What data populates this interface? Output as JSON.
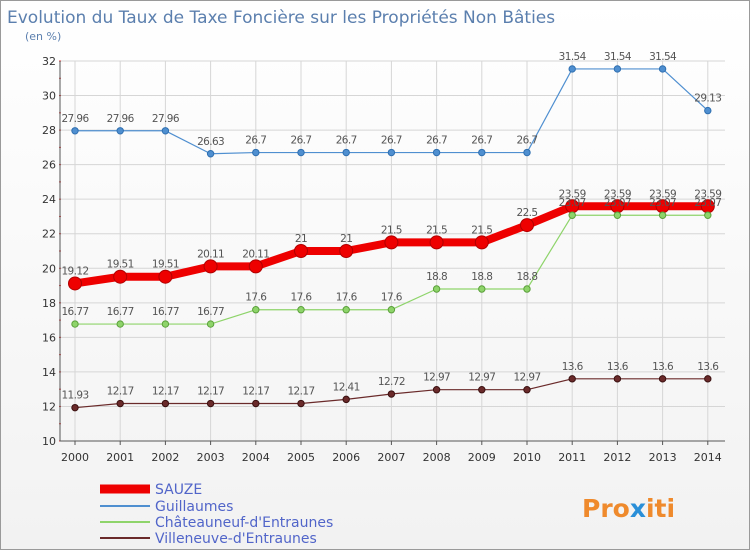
{
  "chart_data": {
    "type": "line",
    "title": "Evolution du Taux de Taxe Foncière sur les Propriétés Non Bâties",
    "subtitle": "(en %)",
    "xlabel": "",
    "ylabel": "(en %)",
    "ylim": [
      10,
      32
    ],
    "yticks": [
      10,
      12,
      14,
      16,
      18,
      20,
      22,
      24,
      26,
      28,
      30,
      32
    ],
    "grid": true,
    "legend_position": "bottom-left",
    "categories": [
      "2000",
      "2001",
      "2002",
      "2003",
      "2004",
      "2005",
      "2006",
      "2007",
      "2008",
      "2009",
      "2010",
      "2011",
      "2012",
      "2013",
      "2014"
    ],
    "series": [
      {
        "name": "SAUZE",
        "color": "#ee0000",
        "values": [
          19.12,
          19.51,
          19.51,
          20.11,
          20.11,
          21,
          21,
          21.5,
          21.5,
          21.5,
          22.5,
          23.59,
          23.59,
          23.59,
          23.59
        ],
        "labels": [
          "19.12",
          "19.51",
          "19.51",
          "20.11",
          "20.11",
          "21",
          "21",
          "21.5",
          "21.5",
          "21.5",
          "22.5",
          "23.59",
          "23.59",
          "23.59",
          "23.59"
        ]
      },
      {
        "name": "Guillaumes",
        "color": "#4f8fd0",
        "values": [
          27.96,
          27.96,
          27.96,
          26.63,
          26.7,
          26.7,
          26.7,
          26.7,
          26.7,
          26.7,
          26.7,
          31.54,
          31.54,
          31.54,
          29.13
        ],
        "labels": [
          "27.96",
          "27.96",
          "27.96",
          "26.63",
          "26.7",
          "26.7",
          "26.7",
          "26.7",
          "26.7",
          "26.7",
          "26.7",
          "31.54",
          "31.54",
          "31.54",
          "29.13"
        ]
      },
      {
        "name": "Châteauneuf-d'Entraunes",
        "color": "#8ed46a",
        "values": [
          16.77,
          16.77,
          16.77,
          16.77,
          17.6,
          17.6,
          17.6,
          17.6,
          18.8,
          18.8,
          18.8,
          23.07,
          23.07,
          23.07,
          23.07
        ],
        "labels": [
          "16.77",
          "16.77",
          "16.77",
          "16.77",
          "17.6",
          "17.6",
          "17.6",
          "17.6",
          "18.8",
          "18.8",
          "18.8",
          "23.07",
          "23.07",
          "23.07",
          "23.07"
        ]
      },
      {
        "name": "Villeneuve-d'Entraunes",
        "color": "#6a2a2a",
        "values": [
          11.93,
          12.17,
          12.17,
          12.17,
          12.17,
          12.17,
          12.41,
          12.72,
          12.97,
          12.97,
          12.97,
          13.6,
          13.6,
          13.6,
          13.6
        ],
        "labels": [
          "11.93",
          "12.17",
          "12.17",
          "12.17",
          "12.17",
          "12.17",
          "12.41",
          "12.72",
          "12.97",
          "12.97",
          "12.97",
          "13.6",
          "13.6",
          "13.6",
          "13.6"
        ]
      }
    ]
  },
  "brand": {
    "text": "Proxiti",
    "color_primary": "#ef8a2c",
    "color_secondary": "#2a8fd8"
  }
}
